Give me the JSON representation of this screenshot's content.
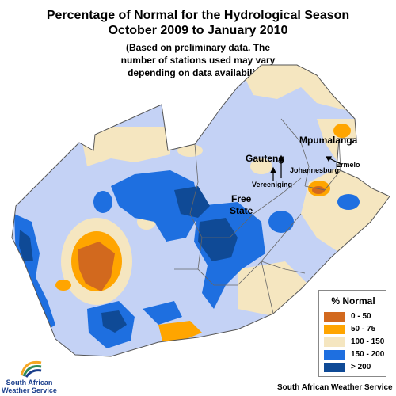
{
  "title_line1": "Percentage of Normal for the Hydrological Season",
  "title_line2": "October 2009 to January 2010",
  "subtitle_lines": [
    "(Based on preliminary data. The",
    "number of stations used may vary",
    "depending on data availability.)"
  ],
  "places": {
    "mpumalanga": "Mpumalanga",
    "ermelo": "Ermelo",
    "gauteng": "Gauteng",
    "johannesburg": "Johannesburg",
    "vereeniging": "Vereeniging",
    "free_state_1": "Free",
    "free_state_2": "State"
  },
  "legend": {
    "title": "% Normal",
    "items": [
      {
        "label": "0 - 50",
        "color": "#d2691e"
      },
      {
        "label": "50 - 75",
        "color": "#ffa500"
      },
      {
        "label": "100 - 150",
        "color": "#f5e6c0"
      },
      {
        "label": "150 - 200",
        "color": "#1e6fe0"
      },
      {
        "label": "> 200",
        "color": "#0f4a96"
      }
    ]
  },
  "colors": {
    "base": "#c4d2f5",
    "near_normal": "#f5e6c0",
    "orange": "#ffa500",
    "brown": "#d2691e",
    "blue": "#1e6fe0",
    "dark_blue": "#0f4a96"
  },
  "logo_text_lines": [
    "South African",
    "Weather Service"
  ],
  "credit": "South African Weather Service"
}
